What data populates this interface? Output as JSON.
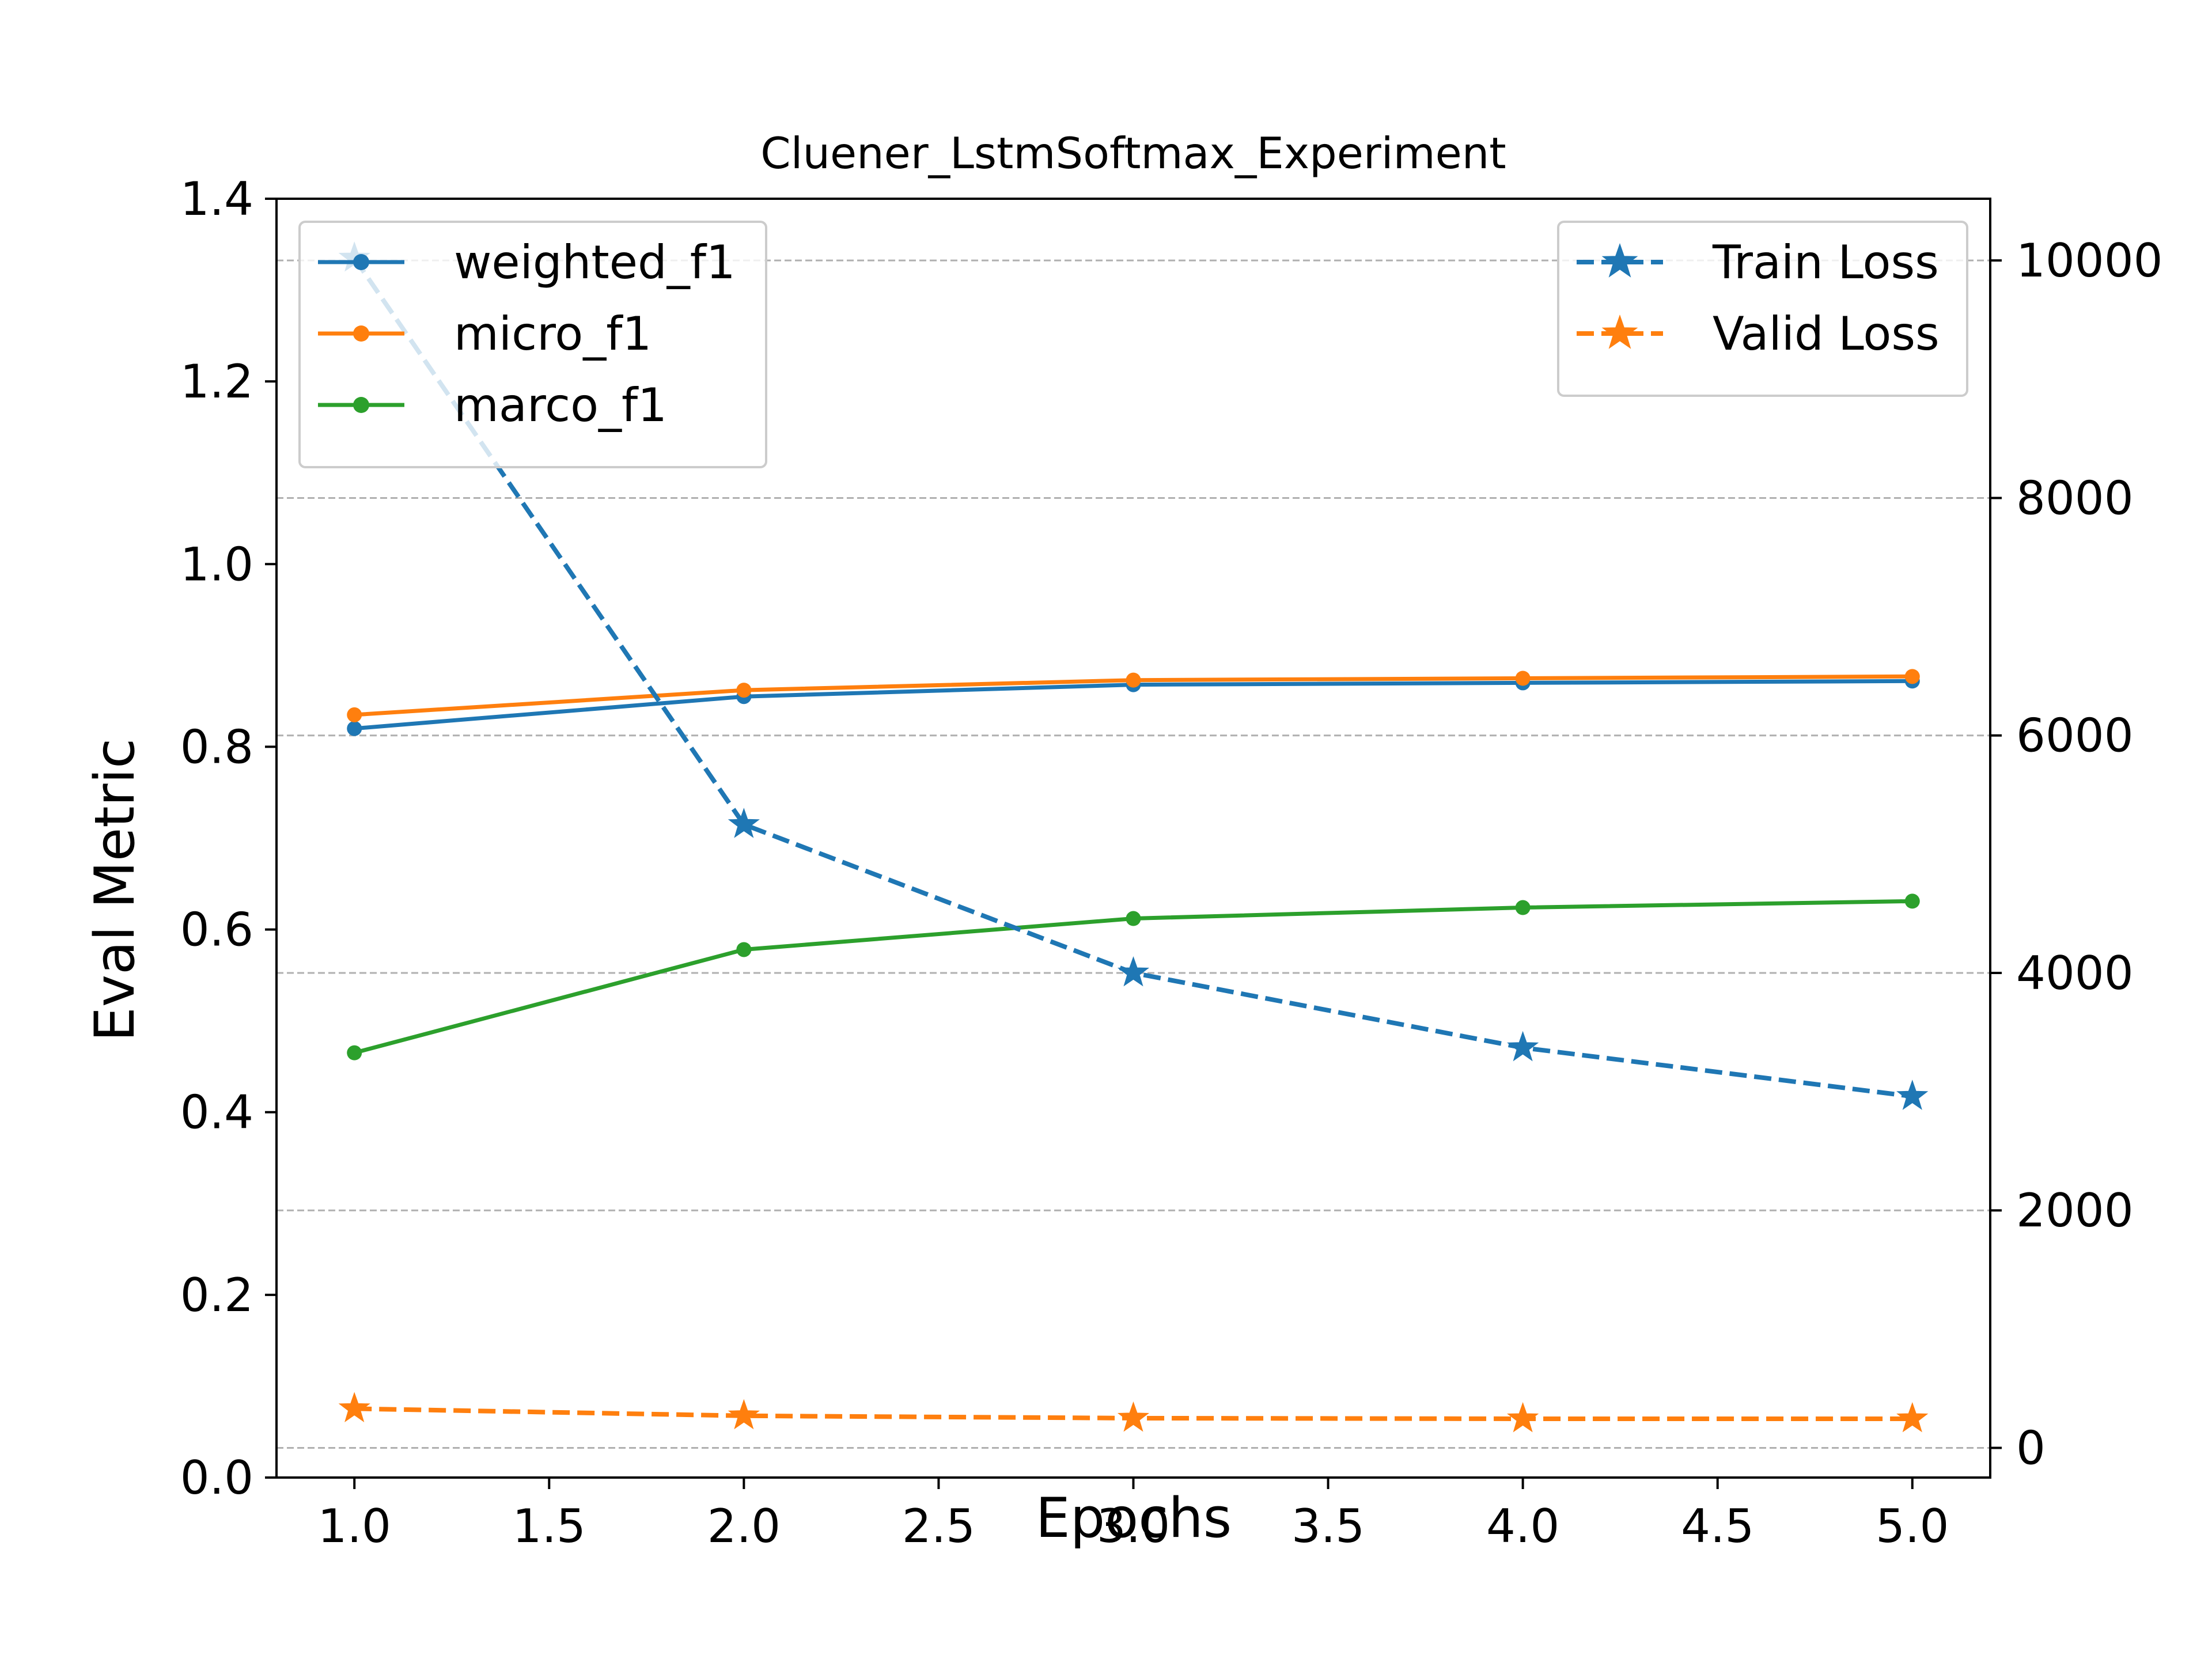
{
  "chart_data": {
    "type": "line",
    "title": "Cluener_LstmSoftmax_Experiment",
    "xlabel": "Epochs",
    "ylabel": "Eval Metric",
    "x": [
      1.0,
      2.0,
      3.0,
      4.0,
      5.0
    ],
    "xlim": [
      0.8,
      5.2
    ],
    "ylim": [
      0.0,
      1.4
    ],
    "y2lim": [
      -250,
      10520
    ],
    "x_ticks": [
      "1.0",
      "1.5",
      "2.0",
      "2.5",
      "3.0",
      "3.5",
      "4.0",
      "4.5",
      "5.0"
    ],
    "x_tick_values": [
      1.0,
      1.5,
      2.0,
      2.5,
      3.0,
      3.5,
      4.0,
      4.5,
      5.0
    ],
    "y_ticks": [
      "0.0",
      "0.2",
      "0.4",
      "0.6",
      "0.8",
      "1.0",
      "1.2",
      "1.4"
    ],
    "y_tick_values": [
      0.0,
      0.2,
      0.4,
      0.6,
      0.8,
      1.0,
      1.2,
      1.4
    ],
    "y2_ticks": [
      "0",
      "2000",
      "4000",
      "6000",
      "8000",
      "10000"
    ],
    "y2_tick_values": [
      0,
      2000,
      4000,
      6000,
      8000,
      10000
    ],
    "grid": "horizontal dashed at right-axis ticks",
    "series": [
      {
        "name": "weighted_f1",
        "axis": "left",
        "color": "#1f77b4",
        "style": "solid",
        "marker": "dot",
        "values": [
          0.82,
          0.855,
          0.868,
          0.87,
          0.872
        ]
      },
      {
        "name": "micro_f1",
        "axis": "left",
        "color": "#ff7f0e",
        "style": "solid",
        "marker": "dot",
        "values": [
          0.835,
          0.862,
          0.873,
          0.875,
          0.877
        ]
      },
      {
        "name": "marco_f1",
        "axis": "left",
        "color": "#2ca02c",
        "style": "solid",
        "marker": "dot",
        "values": [
          0.465,
          0.578,
          0.612,
          0.624,
          0.631
        ]
      }
    ],
    "series_right": [
      {
        "name": "Train Loss",
        "axis": "right",
        "color": "#1f77b4",
        "style": "dashed",
        "marker": "star",
        "values": [
          10020,
          5250,
          4000,
          3370,
          2960
        ]
      },
      {
        "name": "Valid Loss",
        "axis": "right",
        "color": "#ff7f0e",
        "style": "dashed",
        "marker": "star",
        "values": [
          330,
          270,
          250,
          245,
          245
        ]
      }
    ],
    "legend_left_position": "upper-left",
    "legend_right_position": "upper-right"
  }
}
